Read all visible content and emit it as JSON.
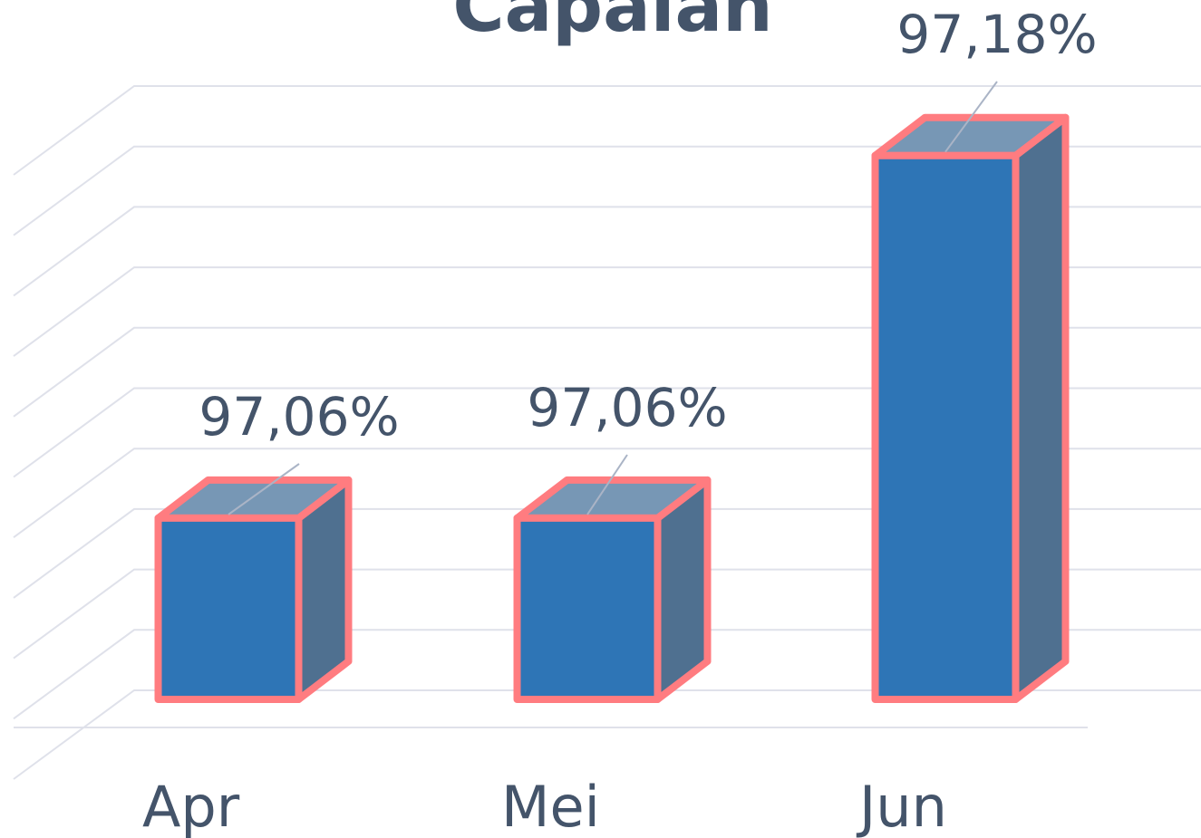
{
  "chart_data": {
    "type": "bar3d",
    "title": "Capaian",
    "categories": [
      "Apr",
      "Mei",
      "Jun"
    ],
    "values": [
      97.06,
      97.06,
      97.18
    ],
    "value_labels": [
      "97,06%",
      "97,06%",
      "97,18%"
    ],
    "color": "#2e75b6",
    "edge_color": "#ff7c80",
    "ylim": [
      97,
      97.2
    ],
    "yticks": [
      97,
      97.02,
      97.04,
      97.06,
      97.08,
      97.1,
      97.12,
      97.14,
      97.16,
      97.18,
      97.2
    ],
    "grid": true
  }
}
